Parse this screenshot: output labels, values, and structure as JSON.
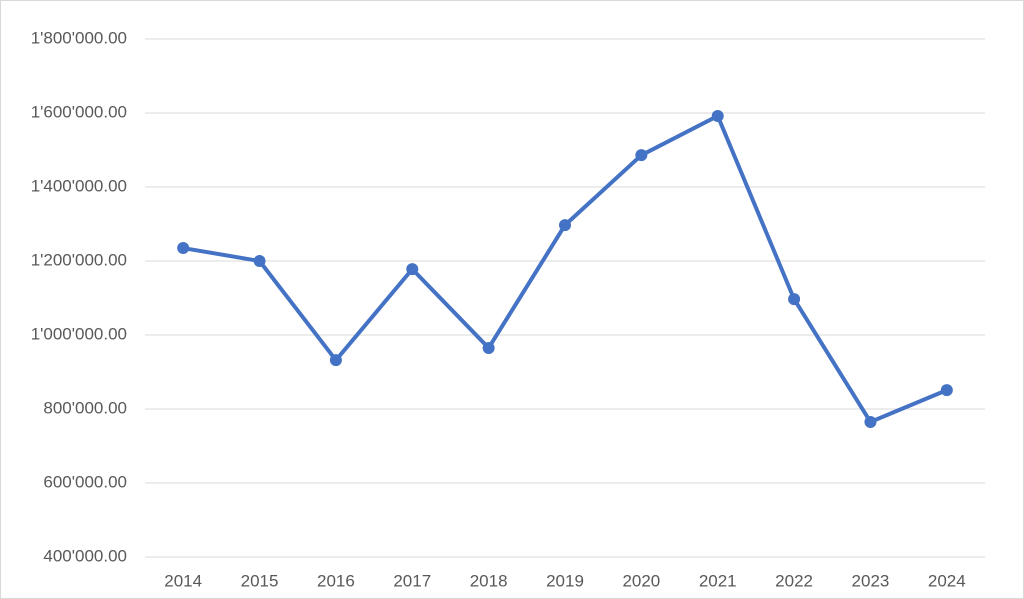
{
  "chart_data": {
    "type": "line",
    "categories": [
      "2014",
      "2015",
      "2016",
      "2017",
      "2018",
      "2019",
      "2020",
      "2021",
      "2022",
      "2023",
      "2024"
    ],
    "series": [
      {
        "color": "#4472c4",
        "values": [
          1235000,
          1200000,
          932000,
          1178000,
          965000,
          1297000,
          1486000,
          1592000,
          1097000,
          765000,
          851000
        ]
      }
    ],
    "ylim": [
      400000,
      1800000
    ],
    "yticks": [
      {
        "value": 400000,
        "label": "400'000.00"
      },
      {
        "value": 600000,
        "label": "600'000.00"
      },
      {
        "value": 800000,
        "label": "800'000.00"
      },
      {
        "value": 1000000,
        "label": "1'000'000.00"
      },
      {
        "value": 1200000,
        "label": "1'200'000.00"
      },
      {
        "value": 1400000,
        "label": "1'400'000.00"
      },
      {
        "value": 1600000,
        "label": "1'600'000.00"
      },
      {
        "value": 1800000,
        "label": "1'800'000.00"
      }
    ],
    "grid": true
  }
}
